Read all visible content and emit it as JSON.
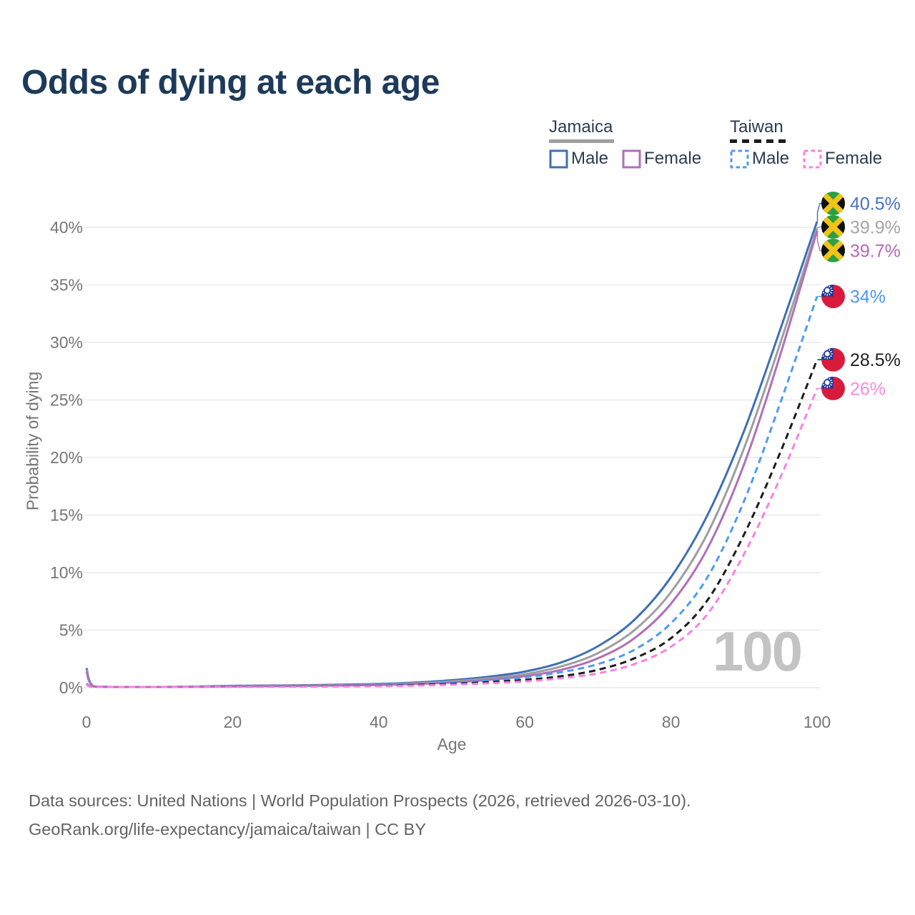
{
  "title": "Odds of dying at each age",
  "legend": {
    "groups": [
      {
        "name": "Jamaica",
        "line_style": "solid",
        "underline_color": "#9e9e9e",
        "items": [
          {
            "label": "Male",
            "color": "#3f6fb5"
          },
          {
            "label": "Female",
            "color": "#b06fb8"
          }
        ]
      },
      {
        "name": "Taiwan",
        "line_style": "dashed",
        "underline_color": "#1c1c1c",
        "items": [
          {
            "label": "Male",
            "color": "#4d9bf5"
          },
          {
            "label": "Female",
            "color": "#fb80e3"
          }
        ]
      }
    ]
  },
  "footer": {
    "line1": "Data sources: United Nations | World Population Prospects (2026, retrieved 2026-03-10).",
    "line2": "GeoRank.org/life-expectancy/jamaica/taiwan | CC BY"
  },
  "chart_data": {
    "type": "line",
    "title": "Odds of dying at each age",
    "xlabel": "Age",
    "ylabel": "Probability of dying",
    "xlim": [
      0,
      100
    ],
    "ylim": [
      0,
      42.5
    ],
    "xticks": [
      0,
      20,
      40,
      60,
      80,
      100
    ],
    "yticks": [
      0,
      5,
      10,
      15,
      20,
      25,
      30,
      35,
      40
    ],
    "ytick_labels": [
      "0%",
      "5%",
      "10%",
      "15%",
      "20%",
      "25%",
      "30%",
      "35%",
      "40%"
    ],
    "grid": "horizontal",
    "legend_position": "top-right",
    "watermark": "100",
    "series": [
      {
        "name": "Jamaica Male",
        "country": "Jamaica",
        "sex": "Male",
        "color": "#3f6fb5",
        "label_color": "#4472c4",
        "line_style": "solid",
        "flag": "jamaica",
        "end_label": "40.5%",
        "points": [
          [
            0,
            1.7
          ],
          [
            1,
            0.12
          ],
          [
            5,
            0.06
          ],
          [
            10,
            0.06
          ],
          [
            15,
            0.1
          ],
          [
            20,
            0.16
          ],
          [
            30,
            0.22
          ],
          [
            40,
            0.32
          ],
          [
            45,
            0.45
          ],
          [
            50,
            0.65
          ],
          [
            55,
            0.95
          ],
          [
            60,
            1.4
          ],
          [
            65,
            2.2
          ],
          [
            70,
            3.6
          ],
          [
            75,
            5.9
          ],
          [
            80,
            9.6
          ],
          [
            85,
            15.0
          ],
          [
            90,
            22.3
          ],
          [
            95,
            31.2
          ],
          [
            100,
            40.5
          ]
        ]
      },
      {
        "name": "Jamaica Both sexes",
        "country": "Jamaica",
        "sex": "Both",
        "color": "#9e9e9e",
        "label_color": "#a5a5a5",
        "line_style": "solid",
        "flag": "jamaica",
        "end_label": "39.9%",
        "points": [
          [
            0,
            1.55
          ],
          [
            1,
            0.11
          ],
          [
            5,
            0.05
          ],
          [
            10,
            0.05
          ],
          [
            15,
            0.09
          ],
          [
            20,
            0.14
          ],
          [
            30,
            0.19
          ],
          [
            40,
            0.27
          ],
          [
            45,
            0.38
          ],
          [
            50,
            0.55
          ],
          [
            55,
            0.8
          ],
          [
            60,
            1.17
          ],
          [
            65,
            1.85
          ],
          [
            70,
            3.0
          ],
          [
            75,
            5.0
          ],
          [
            80,
            8.3
          ],
          [
            85,
            13.4
          ],
          [
            90,
            20.8
          ],
          [
            95,
            30.0
          ],
          [
            100,
            39.9
          ]
        ]
      },
      {
        "name": "Jamaica Female",
        "country": "Jamaica",
        "sex": "Female",
        "color": "#b06fb8",
        "label_color": "#b467be",
        "line_style": "solid",
        "flag": "jamaica",
        "end_label": "39.7%",
        "points": [
          [
            0,
            1.4
          ],
          [
            1,
            0.1
          ],
          [
            5,
            0.05
          ],
          [
            10,
            0.05
          ],
          [
            15,
            0.07
          ],
          [
            20,
            0.11
          ],
          [
            30,
            0.16
          ],
          [
            40,
            0.23
          ],
          [
            45,
            0.32
          ],
          [
            50,
            0.46
          ],
          [
            55,
            0.68
          ],
          [
            60,
            1.0
          ],
          [
            65,
            1.55
          ],
          [
            70,
            2.55
          ],
          [
            75,
            4.3
          ],
          [
            80,
            7.3
          ],
          [
            85,
            12.1
          ],
          [
            90,
            19.4
          ],
          [
            95,
            29.0
          ],
          [
            100,
            39.7
          ]
        ]
      },
      {
        "name": "Taiwan Male",
        "country": "Taiwan",
        "sex": "Male",
        "color": "#4d9bf5",
        "label_color": "#4d97f2",
        "line_style": "dashed",
        "flag": "taiwan",
        "end_label": "34%",
        "points": [
          [
            0,
            0.35
          ],
          [
            1,
            0.04
          ],
          [
            5,
            0.03
          ],
          [
            10,
            0.03
          ],
          [
            15,
            0.06
          ],
          [
            20,
            0.1
          ],
          [
            30,
            0.14
          ],
          [
            40,
            0.2
          ],
          [
            45,
            0.29
          ],
          [
            50,
            0.42
          ],
          [
            55,
            0.62
          ],
          [
            60,
            0.9
          ],
          [
            65,
            1.35
          ],
          [
            70,
            2.05
          ],
          [
            75,
            3.3
          ],
          [
            80,
            5.6
          ],
          [
            85,
            9.6
          ],
          [
            90,
            16.2
          ],
          [
            95,
            24.8
          ],
          [
            100,
            34.0
          ]
        ]
      },
      {
        "name": "Taiwan Both sexes",
        "country": "Taiwan",
        "sex": "Both",
        "color": "#1c1c1c",
        "label_color": "#212121",
        "line_style": "dashed",
        "flag": "taiwan",
        "end_label": "28.5%",
        "points": [
          [
            0,
            0.3
          ],
          [
            1,
            0.035
          ],
          [
            5,
            0.025
          ],
          [
            10,
            0.025
          ],
          [
            15,
            0.05
          ],
          [
            20,
            0.08
          ],
          [
            30,
            0.11
          ],
          [
            40,
            0.16
          ],
          [
            45,
            0.23
          ],
          [
            50,
            0.33
          ],
          [
            55,
            0.48
          ],
          [
            60,
            0.68
          ],
          [
            65,
            1.0
          ],
          [
            70,
            1.55
          ],
          [
            75,
            2.55
          ],
          [
            80,
            4.3
          ],
          [
            85,
            7.6
          ],
          [
            90,
            13.3
          ],
          [
            95,
            20.5
          ],
          [
            100,
            28.5
          ]
        ]
      },
      {
        "name": "Taiwan Female",
        "country": "Taiwan",
        "sex": "Female",
        "color": "#fb80e3",
        "label_color": "#fb8ae0",
        "line_style": "dashed",
        "flag": "taiwan",
        "end_label": "26%",
        "points": [
          [
            0,
            0.28
          ],
          [
            1,
            0.03
          ],
          [
            5,
            0.02
          ],
          [
            10,
            0.02
          ],
          [
            15,
            0.04
          ],
          [
            20,
            0.06
          ],
          [
            30,
            0.09
          ],
          [
            40,
            0.13
          ],
          [
            45,
            0.18
          ],
          [
            50,
            0.26
          ],
          [
            55,
            0.38
          ],
          [
            60,
            0.54
          ],
          [
            65,
            0.82
          ],
          [
            70,
            1.25
          ],
          [
            75,
            2.05
          ],
          [
            80,
            3.55
          ],
          [
            85,
            6.4
          ],
          [
            90,
            11.6
          ],
          [
            95,
            18.3
          ],
          [
            100,
            26.0
          ]
        ]
      }
    ]
  }
}
